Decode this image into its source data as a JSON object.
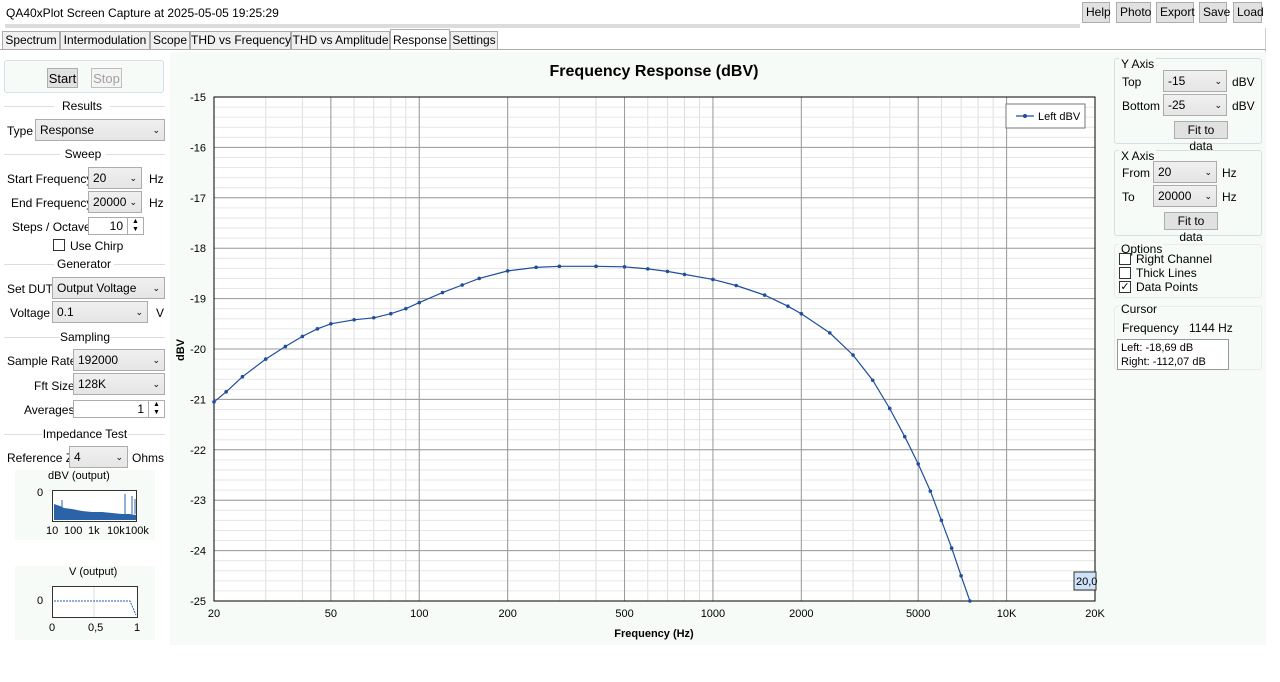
{
  "app": {
    "title": "QA40xPlot Screen Capture at 2025-05-05 19:25:29",
    "toolbar": [
      "Help",
      "Photo",
      "Export",
      "Save",
      "Load"
    ]
  },
  "tabs": [
    {
      "label": "Spectrum",
      "active": false
    },
    {
      "label": "Intermodulation",
      "active": false
    },
    {
      "label": "Scope",
      "active": false
    },
    {
      "label": "THD vs Frequency",
      "active": false
    },
    {
      "label": "THD vs Amplitude",
      "active": false
    },
    {
      "label": "Response",
      "active": true
    },
    {
      "label": "Settings",
      "active": false
    }
  ],
  "left": {
    "start_label": "Start",
    "stop_label": "Stop",
    "results": {
      "header": "Results",
      "type_label": "Type",
      "type_value": "Response"
    },
    "sweep": {
      "header": "Sweep",
      "start_freq_label": "Start Frequency",
      "start_freq_value": "20",
      "start_freq_unit": "Hz",
      "end_freq_label": "End Frequency",
      "end_freq_value": "20000",
      "end_freq_unit": "Hz",
      "steps_label": "Steps / Octave",
      "steps_value": "10",
      "chirp_label": "Use Chirp",
      "chirp_checked": false
    },
    "generator": {
      "header": "Generator",
      "dut_label": "Set DUT",
      "dut_value": "Output Voltage",
      "voltage_label": "Voltage",
      "voltage_value": "0.1",
      "voltage_unit": "V"
    },
    "sampling": {
      "header": "Sampling",
      "rate_label": "Sample Rate",
      "rate_value": "192000",
      "fft_label": "Fft Size",
      "fft_value": "128K",
      "avg_label": "Averages",
      "avg_value": "1"
    },
    "impedance": {
      "header": "Impedance Test",
      "refz_label": "Reference Z",
      "refz_value": "4",
      "refz_unit": "Ohms"
    },
    "mini1": {
      "title": "dBV (output)",
      "y_tick": "0",
      "x_ticks": [
        "10",
        "100",
        "1k",
        "10k",
        "100k"
      ]
    },
    "mini2": {
      "title": "V (output)",
      "y_tick": "0",
      "x_ticks": [
        "0",
        "0,5",
        "1"
      ]
    }
  },
  "chart_data": {
    "type": "line",
    "title": "Frequency Response (dBV)",
    "xlabel": "Frequency (Hz)",
    "ylabel": "dBV",
    "xscale": "log",
    "xlim": [
      20,
      20000
    ],
    "ylim": [
      -25,
      -15
    ],
    "x_tick_labels": [
      "20",
      "50",
      "100",
      "200",
      "500",
      "1000",
      "2000",
      "5000",
      "10K",
      "20K"
    ],
    "y_tick_labels": [
      "-15",
      "-16",
      "-17",
      "-18",
      "-19",
      "-20",
      "-21",
      "-22",
      "-23",
      "-24",
      "-25"
    ],
    "legend": "top-right",
    "grid": true,
    "series": [
      {
        "name": "Left dBV",
        "color": "#1f4e9c",
        "x": [
          20,
          22,
          25,
          30,
          35,
          40,
          45,
          50,
          60,
          70,
          80,
          90,
          100,
          120,
          140,
          160,
          200,
          250,
          300,
          400,
          500,
          600,
          700,
          800,
          1000,
          1200,
          1500,
          1800,
          2000,
          2500,
          3000,
          3500,
          4000,
          4500,
          5000,
          5500,
          6000,
          6500,
          7000,
          7500
        ],
        "y": [
          -21.05,
          -20.85,
          -20.55,
          -20.2,
          -19.95,
          -19.75,
          -19.6,
          -19.5,
          -19.42,
          -19.38,
          -19.3,
          -19.2,
          -19.08,
          -18.88,
          -18.73,
          -18.6,
          -18.45,
          -18.38,
          -18.36,
          -18.36,
          -18.37,
          -18.41,
          -18.46,
          -18.52,
          -18.62,
          -18.74,
          -18.93,
          -19.15,
          -19.3,
          -19.68,
          -20.12,
          -20.62,
          -21.18,
          -21.74,
          -22.28,
          -22.82,
          -23.4,
          -23.95,
          -24.5,
          -25.0
        ]
      }
    ]
  },
  "annotation": "20,0",
  "right": {
    "yaxis": {
      "header": "Y Axis",
      "top_label": "Top",
      "top_value": "-15",
      "top_unit": "dBV",
      "bottom_label": "Bottom",
      "bottom_value": "-25",
      "bottom_unit": "dBV",
      "fit_label": "Fit to data"
    },
    "xaxis": {
      "header": "X Axis",
      "from_label": "From",
      "from_value": "20",
      "from_unit": "Hz",
      "to_label": "To",
      "to_value": "20000",
      "to_unit": "Hz",
      "fit_label": "Fit to data"
    },
    "options": {
      "header": "Options",
      "right_channel": "Right Channel",
      "thick_lines": "Thick Lines",
      "data_points": "Data Points",
      "right_checked": false,
      "thick_checked": false,
      "points_checked": true
    },
    "cursor": {
      "header": "Cursor",
      "freq_label": "Frequency",
      "freq_value": "1144 Hz",
      "left_line": "Left: -18,69 dB",
      "right_line": "Right: -112,07 dB"
    }
  }
}
